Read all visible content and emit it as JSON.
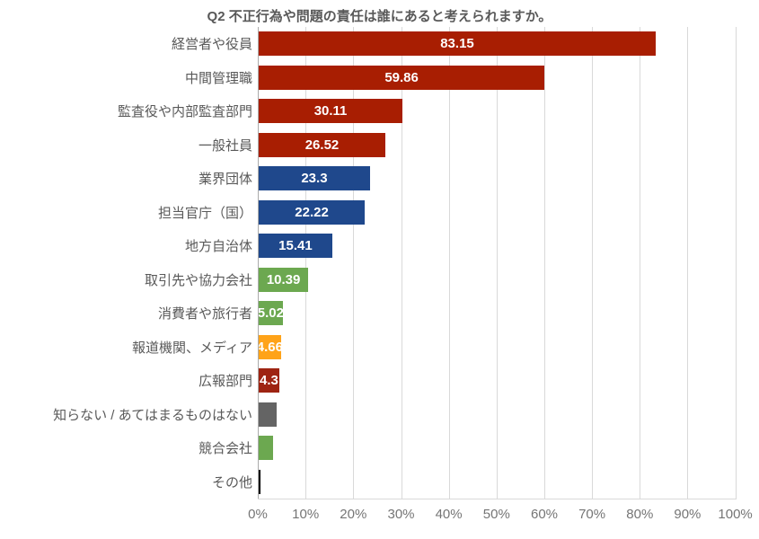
{
  "chart_data": {
    "type": "bar",
    "orientation": "horizontal",
    "title": "Q2 不正行為や問題の責任は誰にあると考えられますか。",
    "xlabel": "",
    "ylabel": "",
    "xlim": [
      0,
      100
    ],
    "grid": true,
    "legend": false,
    "x_axis": {
      "unit": "%",
      "tick_labels": [
        "0%",
        "10%",
        "20%",
        "30%",
        "40%",
        "50%",
        "60%",
        "70%",
        "80%",
        "90%",
        "100%"
      ],
      "tick_values": [
        0,
        10,
        20,
        30,
        40,
        50,
        60,
        70,
        80,
        90,
        100
      ]
    },
    "bars": [
      {
        "label": "経営者や役員",
        "value": 83.15,
        "display": "83.15",
        "color": "#a81e02"
      },
      {
        "label": "中間管理職",
        "value": 59.86,
        "display": "59.86",
        "color": "#a81e02"
      },
      {
        "label": "監査役や内部監査部門",
        "value": 30.11,
        "display": "30.11",
        "color": "#a81e02"
      },
      {
        "label": "一般社員",
        "value": 26.52,
        "display": "26.52",
        "color": "#a81e02"
      },
      {
        "label": "業界団体",
        "value": 23.3,
        "display": "23.3",
        "color": "#1f488c"
      },
      {
        "label": "担当官庁（国）",
        "value": 22.22,
        "display": "22.22",
        "color": "#1f488c"
      },
      {
        "label": "地方自治体",
        "value": 15.41,
        "display": "15.41",
        "color": "#1f488c"
      },
      {
        "label": "取引先や協力会社",
        "value": 10.39,
        "display": "10.39",
        "color": "#6ca850"
      },
      {
        "label": "消費者や旅行者",
        "value": 5.02,
        "display": "5.02",
        "color": "#6ca850"
      },
      {
        "label": "報道機関、メディア",
        "value": 4.66,
        "display": "4.66",
        "color": "#ffa319"
      },
      {
        "label": "広報部門",
        "value": 4.3,
        "display": "4.3",
        "color": "#9e2412"
      },
      {
        "label": "知らない / あてはまるものはない",
        "value": 3.8,
        "display": "",
        "color": "#646464"
      },
      {
        "label": "競合会社",
        "value": 3.0,
        "display": "",
        "color": "#6ca850"
      },
      {
        "label": "その他",
        "value": 0.4,
        "display": "",
        "color": "#000000"
      }
    ],
    "styles": {
      "title_color": "#595959",
      "category_label_color": "#595959",
      "tick_label_color": "#757575",
      "value_label_color": "#ffffff",
      "gridline_color": "#d9d9d9",
      "axis_line_color": "#ababab",
      "background": "#ffffff"
    }
  }
}
